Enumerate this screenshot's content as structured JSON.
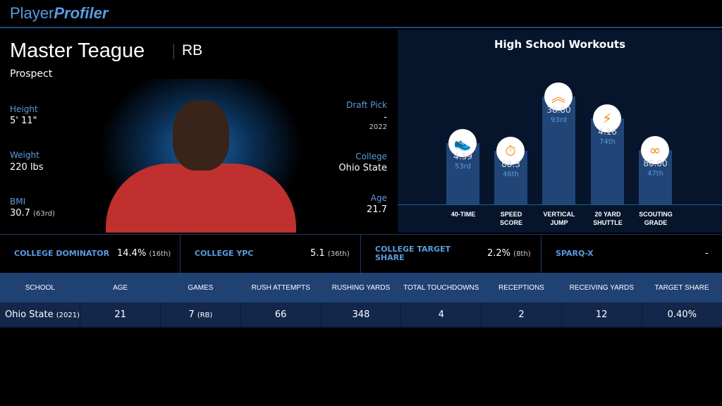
{
  "brand": {
    "player": "Player",
    "profiler": "Profiler"
  },
  "player": {
    "name": "Master Teague",
    "position": "RB",
    "status": "Prospect",
    "height_label": "Height",
    "height": "5' 11\"",
    "weight_label": "Weight",
    "weight": "220 lbs",
    "bmi_label": "BMI",
    "bmi": "30.7",
    "bmi_rank": "(63rd)",
    "draft_label": "Draft Pick",
    "draft": "-",
    "draft_year": "2022",
    "college_label": "College",
    "college": "Ohio State",
    "age_label": "Age",
    "age": "21.7"
  },
  "workouts": {
    "title": "High School Workouts",
    "items": [
      {
        "label1": "40-TIME",
        "label2": "",
        "value": "4.59",
        "pct": "53rd",
        "pct_num": 53,
        "icon": "shoe-icon"
      },
      {
        "label1": "SPEED",
        "label2": "SCORE",
        "value": "88.3",
        "pct": "46th",
        "pct_num": 46,
        "icon": "stopwatch-icon"
      },
      {
        "label1": "VERTICAL",
        "label2": "JUMP",
        "value": "38.80",
        "pct": "93rd",
        "pct_num": 93,
        "icon": "chevrons-up-icon"
      },
      {
        "label1": "20 YARD",
        "label2": "SHUTTLE",
        "value": "4.16",
        "pct": "74th",
        "pct_num": 74,
        "icon": "lightning-icon"
      },
      {
        "label1": "SCOUTING",
        "label2": "GRADE",
        "value": "80.00",
        "pct": "47th",
        "pct_num": 47,
        "icon": "binoculars-icon"
      }
    ],
    "accent": "#f48a14"
  },
  "metrics": [
    {
      "label": "COLLEGE DOMINATOR",
      "value": "14.4%",
      "rank": "(16th)"
    },
    {
      "label": "COLLEGE YPC",
      "value": "5.1",
      "rank": "(36th)"
    },
    {
      "label": "COLLEGE TARGET SHARE",
      "value": "2.2%",
      "rank": "(8th)"
    },
    {
      "label": "SPARQ-X",
      "value": "-",
      "rank": ""
    }
  ],
  "table": {
    "headers": [
      "SCHOOL",
      "AGE",
      "GAMES",
      "RUSH ATTEMPTS",
      "RUSHING YARDS",
      "TOTAL TOUCHDOWNS",
      "RECEPTIONS",
      "RECEIVING YARDS",
      "TARGET SHARE"
    ],
    "row": {
      "school": "Ohio State",
      "year": "(2021)",
      "age": "21",
      "games": "7",
      "games_pos": "(RB)",
      "rush_att": "66",
      "rush_yds": "348",
      "td": "4",
      "rec": "2",
      "rec_yds": "12",
      "target": "0.40%"
    }
  }
}
